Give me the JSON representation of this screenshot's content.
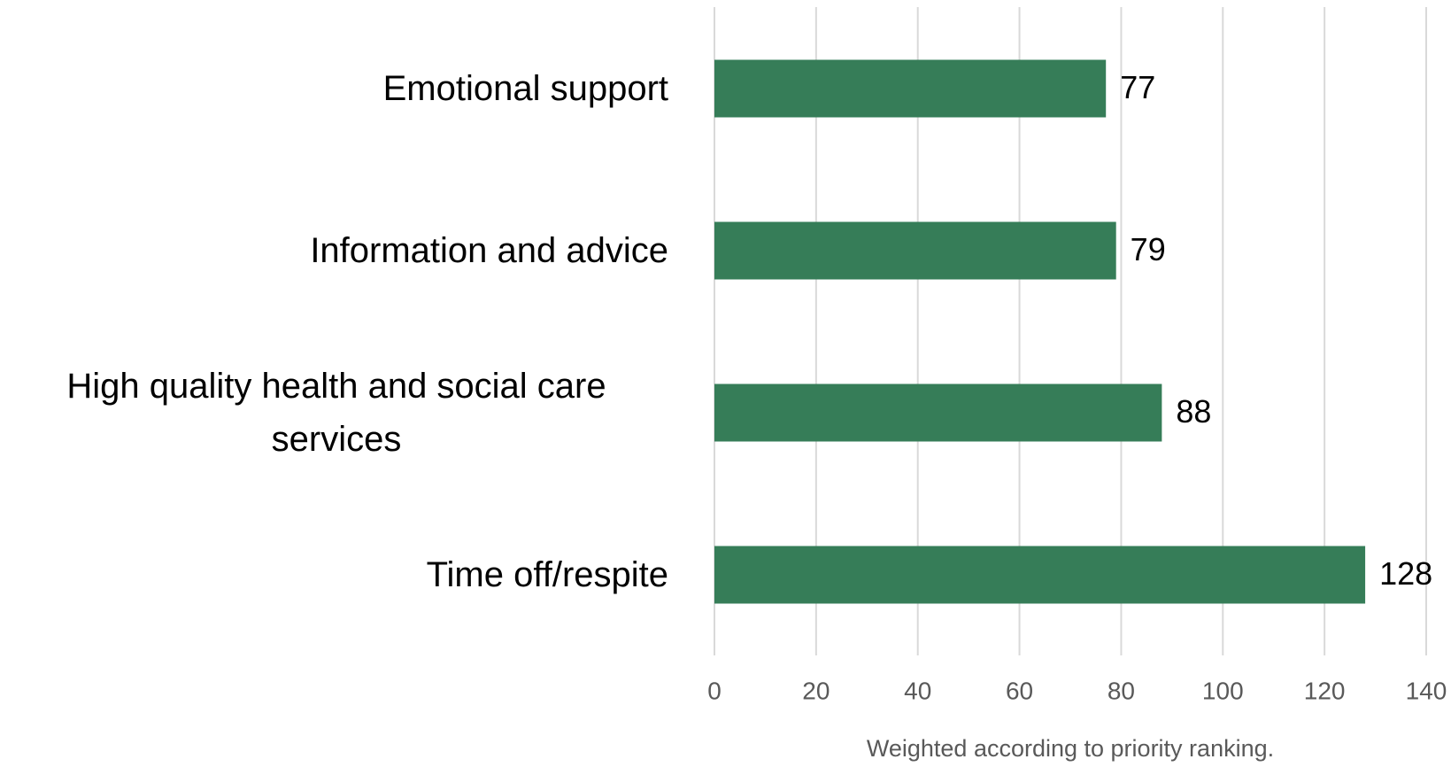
{
  "chart_data": {
    "type": "barh",
    "categories": [
      "Emotional support",
      "Information and advice",
      "High quality health and social care services",
      "Time off/respite"
    ],
    "values": [
      77,
      79,
      88,
      128
    ],
    "color": "#367d58",
    "xlabel": "Weighted according to priority ranking.",
    "xlim": [
      0,
      140
    ],
    "xticks": [
      0,
      20,
      40,
      60,
      80,
      100,
      120,
      140
    ],
    "grid": true
  }
}
